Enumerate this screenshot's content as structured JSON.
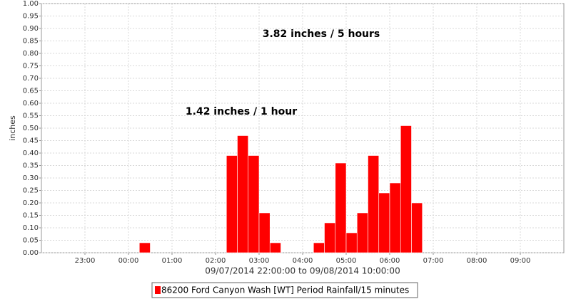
{
  "chart_data": {
    "type": "bar",
    "annotations": [
      "3.82 inches / 5 hours",
      "1.42 inches / 1 hour"
    ],
    "ylabel": "inches",
    "xlabel": "09/07/2014 22:00:00 to 09/08/2014 10:00:00",
    "x": [
      "00:15",
      "02:15",
      "02:30",
      "02:45",
      "03:00",
      "03:15",
      "04:15",
      "04:30",
      "04:45",
      "05:00",
      "05:15",
      "05:30",
      "05:45",
      "06:00",
      "06:15",
      "06:30"
    ],
    "series": [
      {
        "name": "86200 Ford Canyon Wash [WT] Period Rainfall/15 minutes",
        "color": "#ff0000",
        "values": [
          0.04,
          0.39,
          0.47,
          0.39,
          0.16,
          0.04,
          0.04,
          0.12,
          0.36,
          0.08,
          0.16,
          0.39,
          0.24,
          0.28,
          0.51,
          0.2
        ]
      }
    ],
    "xlim": [
      "22:00",
      "10:00"
    ],
    "xticks": [
      "23:00",
      "00:00",
      "01:00",
      "02:00",
      "03:00",
      "04:00",
      "05:00",
      "06:00",
      "07:00",
      "08:00",
      "09:00"
    ],
    "ylim": [
      0,
      1
    ],
    "yticks": [
      {
        "value": 0,
        "label": "0.00"
      },
      0.05,
      {
        "value": 0.1,
        "label": "0.10"
      },
      0.15,
      {
        "value": 0.2,
        "label": "0.20"
      },
      0.25,
      {
        "value": 0.3,
        "label": "0.30"
      },
      0.35,
      {
        "value": 0.4,
        "label": "0.40"
      },
      0.45,
      {
        "value": 0.5,
        "label": "0.50"
      },
      0.55,
      {
        "value": 0.6,
        "label": "0.60"
      },
      0.65,
      {
        "value": 0.7,
        "label": "0.70"
      },
      0.75,
      {
        "value": 0.8,
        "label": "0.80"
      },
      0.85,
      {
        "value": 0.9,
        "label": "0.90"
      },
      0.95,
      {
        "value": 1,
        "label": "1.00"
      }
    ],
    "grid": true
  }
}
